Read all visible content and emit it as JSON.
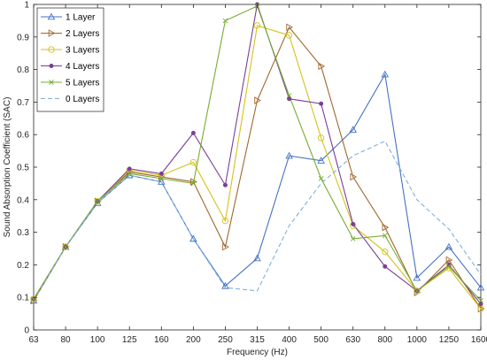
{
  "chart_data": {
    "type": "line",
    "xlabel": "Frequency (Hz)",
    "ylabel": "Sound Absorption Coefficient (SAC)",
    "categories": [
      "63",
      "80",
      "100",
      "125",
      "160",
      "200",
      "250",
      "315",
      "400",
      "500",
      "630",
      "800",
      "1000",
      "1250",
      "1600"
    ],
    "ylim": [
      0,
      1
    ],
    "yticks": [
      "0",
      "0.1",
      "0.2",
      "0.3",
      "0.4",
      "0.5",
      "0.6",
      "0.7",
      "0.8",
      "0.9",
      "1"
    ],
    "grid": false,
    "legend_position": "top-left",
    "series": [
      {
        "name": "1 Layer",
        "color": "#4472c4",
        "marker": "triangle-up",
        "dash": "solid",
        "values": [
          0.09,
          0.255,
          0.39,
          0.475,
          0.455,
          0.28,
          0.135,
          0.22,
          0.535,
          0.52,
          0.615,
          0.785,
          0.16,
          0.255,
          0.13
        ]
      },
      {
        "name": "2 Layers",
        "color": "#a0682e",
        "marker": "triangle-right",
        "dash": "solid",
        "values": [
          0.09,
          0.255,
          0.395,
          0.485,
          0.47,
          0.455,
          0.255,
          0.705,
          0.93,
          0.81,
          0.47,
          0.315,
          0.115,
          0.215,
          0.065
        ]
      },
      {
        "name": "3 Layers",
        "color": "#d4c21a",
        "marker": "circle",
        "dash": "solid",
        "values": [
          0.095,
          0.255,
          0.395,
          0.49,
          0.475,
          0.515,
          0.335,
          0.935,
          0.905,
          0.59,
          0.32,
          0.24,
          0.12,
          0.19,
          0.065
        ]
      },
      {
        "name": "4 Layers",
        "color": "#7b3f98",
        "marker": "dot",
        "dash": "solid",
        "values": [
          0.095,
          0.255,
          0.395,
          0.495,
          0.48,
          0.605,
          0.445,
          1.0,
          0.71,
          0.695,
          0.325,
          0.195,
          0.12,
          0.2,
          0.08
        ]
      },
      {
        "name": "5 Layers",
        "color": "#77ac30",
        "marker": "x",
        "dash": "solid",
        "values": [
          0.095,
          0.255,
          0.395,
          0.48,
          0.465,
          0.45,
          0.95,
          0.995,
          0.72,
          0.465,
          0.28,
          0.29,
          0.12,
          0.195,
          0.09
        ]
      },
      {
        "name": "0 Layers",
        "color": "#7fb3d8",
        "marker": "none",
        "dash": "dashed",
        "values": [
          0.09,
          0.255,
          0.39,
          0.475,
          0.455,
          0.28,
          0.13,
          0.12,
          0.32,
          0.45,
          0.535,
          0.58,
          0.4,
          0.31,
          0.17
        ]
      }
    ]
  }
}
